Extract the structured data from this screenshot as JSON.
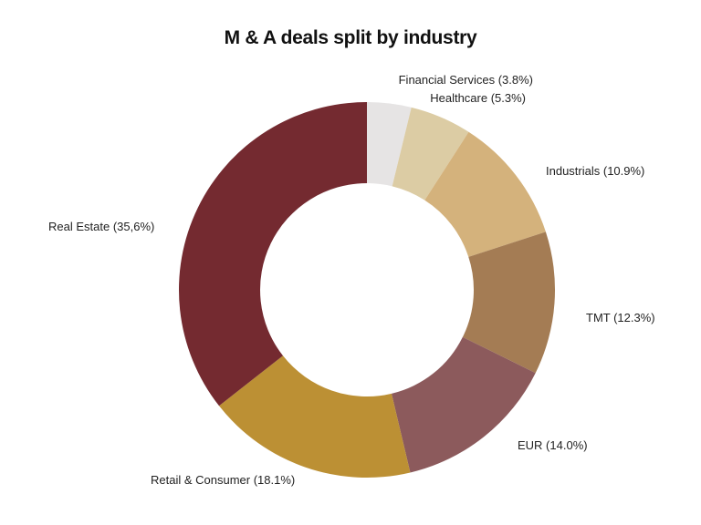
{
  "chart_data": {
    "type": "pie",
    "title": "M & A deals split by industry",
    "donut": true,
    "categories": [
      "Financial Services",
      "Healthcare",
      "Industrials",
      "TMT",
      "EUR",
      "Retail & Consumer",
      "Real Estate"
    ],
    "values": [
      3.8,
      5.3,
      10.9,
      12.3,
      14.0,
      18.1,
      35.6
    ],
    "labels": [
      "Financial Services (3.8%)",
      "Healthcare (5.3%)",
      "Industrials (10.9%)",
      "TMT (12.3%)",
      "EUR (14.0%)",
      "Retail & Consumer (18.1%)",
      "Real Estate (35,6%)"
    ],
    "colors": [
      "#e6e4e4",
      "#dccca4",
      "#d4b27c",
      "#a47c54",
      "#8c5a5c",
      "#bc9034",
      "#742a30"
    ],
    "legend": "none"
  }
}
